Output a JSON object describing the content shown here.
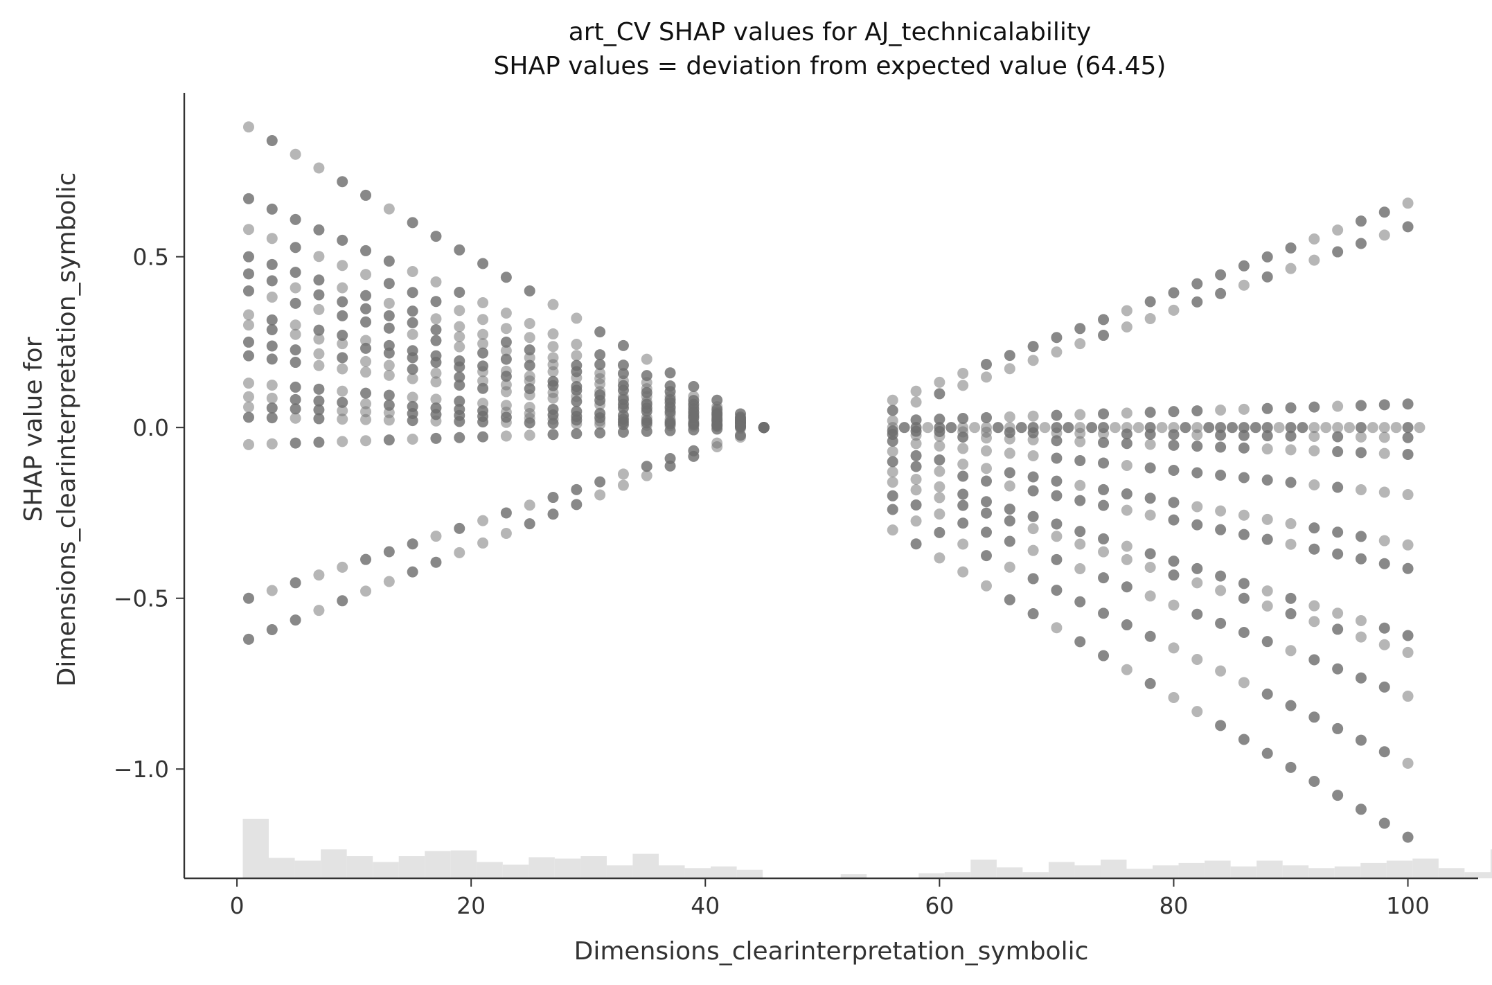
{
  "chart_data": {
    "type": "scatter",
    "title": "art_CV SHAP values for AJ_technicalability",
    "subtitle": "SHAP values = deviation from expected value (64.45)",
    "xlabel": "Dimensions_clearinterpretation_symbolic",
    "ylabel_lines": [
      "SHAP value for",
      "Dimensions_clearinterpretation_symbolic"
    ],
    "xlim": [
      -4.5,
      106
    ],
    "ylim": [
      -1.32,
      0.98
    ],
    "xticks": [
      0,
      20,
      40,
      60,
      80,
      100
    ],
    "xtick_labels": [
      "0",
      "20",
      "40",
      "60",
      "80",
      "100"
    ],
    "yticks": [
      0.5,
      0.0,
      -0.5,
      -1.0
    ],
    "ytick_labels": [
      "0.5",
      "0.0",
      "−0.5",
      "−1.0"
    ],
    "grid": false,
    "colors": {
      "point": "#6e6e6e",
      "histogram": "#e3e3e3",
      "axis": "#333333"
    },
    "lines": [
      {
        "x0": 1,
        "y0": 0.88,
        "x1": 45,
        "y1": 0.0,
        "step": 2
      },
      {
        "x0": 1,
        "y0": 0.67,
        "x1": 45,
        "y1": 0.0,
        "step": 2
      },
      {
        "x0": 1,
        "y0": 0.58,
        "x1": 45,
        "y1": 0.0,
        "step": 2
      },
      {
        "x0": 1,
        "y0": 0.5,
        "x1": 45,
        "y1": 0.0,
        "step": 2
      },
      {
        "x0": 1,
        "y0": 0.45,
        "x1": 45,
        "y1": 0.0,
        "step": 2
      },
      {
        "x0": 1,
        "y0": 0.4,
        "x1": 45,
        "y1": 0.0,
        "step": 2
      },
      {
        "x0": 1,
        "y0": 0.33,
        "x1": 45,
        "y1": 0.0,
        "step": 2
      },
      {
        "x0": 1,
        "y0": 0.3,
        "x1": 45,
        "y1": 0.0,
        "step": 2
      },
      {
        "x0": 1,
        "y0": 0.25,
        "x1": 45,
        "y1": 0.0,
        "step": 2
      },
      {
        "x0": 1,
        "y0": 0.21,
        "x1": 45,
        "y1": 0.0,
        "step": 2
      },
      {
        "x0": 1,
        "y0": 0.13,
        "x1": 45,
        "y1": 0.0,
        "step": 2
      },
      {
        "x0": 1,
        "y0": 0.09,
        "x1": 45,
        "y1": 0.0,
        "step": 2
      },
      {
        "x0": 1,
        "y0": 0.06,
        "x1": 45,
        "y1": 0.0,
        "step": 2
      },
      {
        "x0": 1,
        "y0": 0.03,
        "x1": 45,
        "y1": 0.0,
        "step": 2
      },
      {
        "x0": 1,
        "y0": -0.05,
        "x1": 45,
        "y1": 0.0,
        "step": 2
      },
      {
        "x0": 1,
        "y0": -0.5,
        "x1": 45,
        "y1": 0.0,
        "step": 2
      },
      {
        "x0": 1,
        "y0": -0.62,
        "x1": 45,
        "y1": 0.0,
        "step": 2
      },
      {
        "x0": 56,
        "y0": 0.08,
        "x1": 101,
        "y1": 0.67,
        "step": 2
      },
      {
        "x0": 56,
        "y0": 0.05,
        "x1": 101,
        "y1": 0.6,
        "step": 2
      },
      {
        "x0": 56,
        "y0": -0.3,
        "x1": 101,
        "y1": -1.22,
        "step": 2
      },
      {
        "x0": 56,
        "y0": -0.24,
        "x1": 101,
        "y1": -1.0,
        "step": 2
      },
      {
        "x0": 56,
        "y0": -0.2,
        "x1": 101,
        "y1": -0.8,
        "step": 2
      },
      {
        "x0": 56,
        "y0": -0.16,
        "x1": 101,
        "y1": -0.67,
        "step": 2
      },
      {
        "x0": 56,
        "y0": -0.13,
        "x1": 101,
        "y1": -0.62,
        "step": 2
      },
      {
        "x0": 56,
        "y0": -0.1,
        "x1": 101,
        "y1": -0.42,
        "step": 2
      },
      {
        "x0": 56,
        "y0": -0.07,
        "x1": 101,
        "y1": -0.35,
        "step": 2
      },
      {
        "x0": 56,
        "y0": -0.04,
        "x1": 101,
        "y1": -0.2,
        "step": 2
      },
      {
        "x0": 56,
        "y0": -0.02,
        "x1": 101,
        "y1": -0.08,
        "step": 2
      },
      {
        "x0": 56,
        "y0": -0.01,
        "x1": 101,
        "y1": -0.03,
        "step": 2
      },
      {
        "x0": 56,
        "y0": 0.0,
        "x1": 101,
        "y1": 0.0,
        "step": 1
      },
      {
        "x0": 56,
        "y0": 0.02,
        "x1": 101,
        "y1": 0.07,
        "step": 2
      }
    ],
    "histogram": {
      "bin_width": 2.22,
      "start": 0.5,
      "heights": [
        0.175,
        0.06,
        0.052,
        0.085,
        0.065,
        0.048,
        0.065,
        0.08,
        0.082,
        0.048,
        0.04,
        0.062,
        0.058,
        0.065,
        0.038,
        0.072,
        0.038,
        0.03,
        0.035,
        0.025,
        0.0,
        0.0,
        0.0,
        0.012,
        0.0,
        0.0,
        0.015,
        0.018,
        0.055,
        0.032,
        0.018,
        0.048,
        0.038,
        0.055,
        0.028,
        0.038,
        0.045,
        0.052,
        0.035,
        0.052,
        0.038,
        0.03,
        0.035,
        0.045,
        0.052,
        0.058,
        0.03,
        0.018,
        0.085
      ]
    }
  }
}
